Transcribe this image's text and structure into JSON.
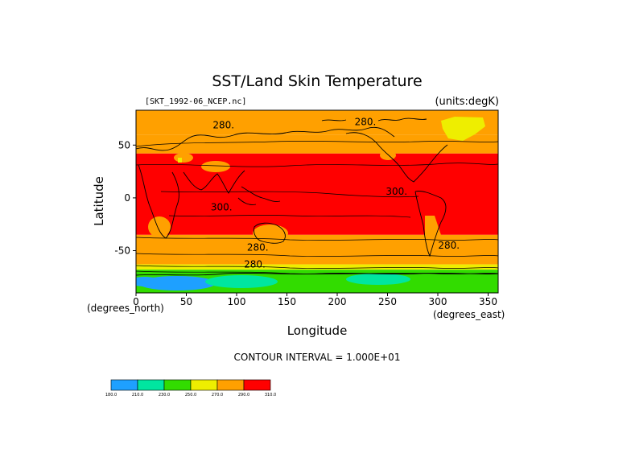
{
  "figure": {
    "title": "SST/Land Skin Temperature",
    "source_label": "[SKT_1992-06_NCEP.nc]",
    "units_label": "(units:degK)",
    "contour_interval_text": "CONTOUR INTERVAL = 1.000E+01"
  },
  "chart_data": {
    "type": "heatmap",
    "title": "SST/Land Skin Temperature",
    "xlabel": "Longitude",
    "ylabel": "Latitude",
    "x_unit_label": "(degrees_east)",
    "y_unit_label": "(degrees_north)",
    "xlim": [
      0,
      360
    ],
    "ylim": [
      -90,
      90
    ],
    "x_ticks": [
      0,
      50,
      100,
      150,
      200,
      250,
      300,
      350
    ],
    "y_ticks": [
      -50,
      0,
      50
    ],
    "contour_labels": [
      {
        "text": "280.",
        "lon": 87,
        "lat": 66
      },
      {
        "text": "280.",
        "lon": 228,
        "lat": 69
      },
      {
        "text": "300.",
        "lon": 259,
        "lat": 3
      },
      {
        "text": "300.",
        "lon": 85,
        "lat": -12
      },
      {
        "text": "280.",
        "lon": 121,
        "lat": -50
      },
      {
        "text": "280.",
        "lon": 311,
        "lat": -48
      },
      {
        "text": "280.",
        "lon": 118,
        "lat": -66
      }
    ],
    "legend": {
      "bounds": [
        "180.0",
        "210.0",
        "230.0",
        "250.0",
        "270.0",
        "290.0",
        "310.0"
      ],
      "colors": [
        "#1ea0ff",
        "#00e6a0",
        "#32dc00",
        "#eeee00",
        "#ffa000",
        "#ff0000"
      ]
    },
    "bands": [
      {
        "lat_top": 90,
        "lat_bottom": 60,
        "color": "#ffa000"
      },
      {
        "lat_top": 60,
        "lat_bottom": 42,
        "color": "#ffa000"
      },
      {
        "lat_top": 42,
        "lat_bottom": -35,
        "color": "#ff0000"
      },
      {
        "lat_top": -35,
        "lat_bottom": -63,
        "color": "#ffa000"
      },
      {
        "lat_top": -63,
        "lat_bottom": -68,
        "color": "#eeee00"
      },
      {
        "lat_top": -68,
        "lat_bottom": -90,
        "color": "#32dc00"
      }
    ],
    "grid": false
  }
}
